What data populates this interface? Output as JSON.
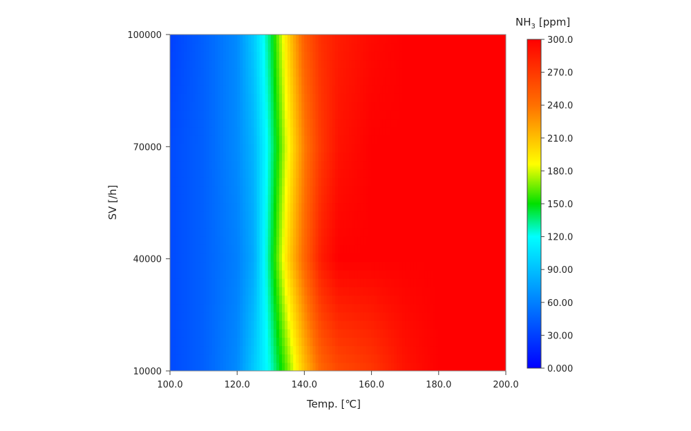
{
  "chart_data": {
    "type": "heatmap",
    "xlabel": "Temp. [℃]",
    "ylabel": "SV [/h]",
    "xlim": [
      100,
      200
    ],
    "ylim": [
      10000,
      100000
    ],
    "x_ticks": [
      "100.0",
      "120.0",
      "140.0",
      "160.0",
      "180.0",
      "200.0"
    ],
    "y_ticks": [
      "10000",
      "40000",
      "70000",
      "100000"
    ],
    "colorbar": {
      "title": "NH",
      "title_subscript": "3",
      "title_unit": "[ppm]",
      "range": [
        0,
        300
      ],
      "ticks": [
        "0.000",
        "30.00",
        "60.00",
        "90.00",
        "120.0",
        "150.0",
        "180.0",
        "210.0",
        "240.0",
        "270.0",
        "300.0"
      ]
    },
    "grid_x": [
      100,
      110,
      120,
      125,
      130,
      135,
      140,
      145,
      150,
      160,
      170,
      180,
      190,
      200
    ],
    "grid_y": [
      10000,
      40000,
      70000,
      100000
    ],
    "values": [
      [
        35,
        45,
        65,
        95,
        125,
        165,
        210,
        245,
        260,
        270,
        290,
        300,
        300,
        300
      ],
      [
        35,
        45,
        60,
        80,
        140,
        200,
        245,
        285,
        300,
        300,
        300,
        300,
        300,
        300
      ],
      [
        35,
        45,
        65,
        85,
        130,
        185,
        235,
        270,
        290,
        300,
        300,
        300,
        300,
        300
      ],
      [
        30,
        45,
        65,
        95,
        140,
        200,
        250,
        275,
        285,
        295,
        300,
        300,
        300,
        300
      ]
    ]
  }
}
